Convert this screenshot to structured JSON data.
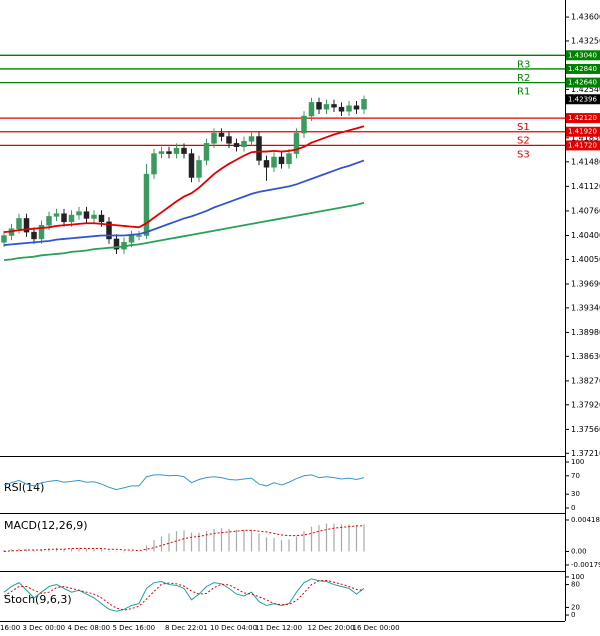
{
  "chart_data": [
    {
      "type": "candlestick",
      "categories": [
        "16:00",
        null,
        null,
        "3 Dec 00:00",
        null,
        null,
        null,
        null,
        null,
        "4 Dec 08:00",
        null,
        null,
        null,
        null,
        null,
        "5 Dec 16:00",
        null,
        null,
        null,
        null,
        null,
        null,
        "8 Dec 22:01",
        null,
        null,
        null,
        null,
        null,
        "10 Dec 04:00",
        null,
        null,
        null,
        null,
        null,
        "11 Dec 12:00",
        null,
        null,
        null,
        null,
        null,
        null,
        "12 Dec 20:00",
        null,
        null,
        null,
        null,
        null,
        "16 Dec 00:00",
        null
      ],
      "open": [
        1.403,
        1.404,
        1.405,
        1.4065,
        1.4045,
        1.4035,
        1.4055,
        1.4068,
        1.4072,
        1.406,
        1.407,
        1.4075,
        1.4065,
        1.407,
        1.406,
        1.4035,
        1.402,
        1.403,
        1.404,
        1.404,
        1.413,
        1.416,
        1.4163,
        1.416,
        1.4168,
        1.416,
        1.4125,
        1.415,
        1.4175,
        1.419,
        1.4185,
        1.4175,
        1.417,
        1.4178,
        1.4185,
        1.415,
        1.414,
        1.4155,
        1.4145,
        1.416,
        1.419,
        1.4215,
        1.4235,
        1.4225,
        1.4232,
        1.4228,
        1.4222,
        1.423,
        1.4225
      ],
      "high": [
        1.4047,
        1.4057,
        1.4072,
        1.4072,
        1.4052,
        1.4062,
        1.4075,
        1.4079,
        1.4079,
        1.4077,
        1.4082,
        1.4082,
        1.4077,
        1.4077,
        1.4067,
        1.4042,
        1.4037,
        1.4047,
        1.4047,
        1.4145,
        1.4167,
        1.417,
        1.417,
        1.4175,
        1.4175,
        1.4167,
        1.4157,
        1.4182,
        1.4197,
        1.4197,
        1.4192,
        1.4182,
        1.4185,
        1.4192,
        1.4192,
        1.4157,
        1.4162,
        1.4162,
        1.4167,
        1.4197,
        1.4222,
        1.4242,
        1.4242,
        1.4239,
        1.4239,
        1.4235,
        1.4237,
        1.4237,
        1.4245
      ],
      "low": [
        1.4023,
        1.4033,
        1.4043,
        1.4038,
        1.4028,
        1.4028,
        1.4048,
        1.4061,
        1.4053,
        1.4053,
        1.4063,
        1.4058,
        1.4058,
        1.4053,
        1.4028,
        1.4013,
        1.4013,
        1.4023,
        1.4033,
        1.4035,
        1.4123,
        1.4153,
        1.4153,
        1.4153,
        1.4153,
        1.4118,
        1.4118,
        1.4143,
        1.4168,
        1.4178,
        1.4168,
        1.4163,
        1.4163,
        1.4171,
        1.4143,
        1.412,
        1.4133,
        1.4138,
        1.4138,
        1.4153,
        1.4183,
        1.4208,
        1.4218,
        1.4218,
        1.4221,
        1.4215,
        1.4215,
        1.4218,
        1.4218
      ],
      "close": [
        1.404,
        1.405,
        1.4065,
        1.4045,
        1.4035,
        1.4055,
        1.4068,
        1.4072,
        1.406,
        1.407,
        1.4075,
        1.4065,
        1.407,
        1.406,
        1.4035,
        1.402,
        1.403,
        1.404,
        1.404,
        1.413,
        1.416,
        1.4163,
        1.416,
        1.4168,
        1.416,
        1.4125,
        1.415,
        1.4175,
        1.419,
        1.4185,
        1.4175,
        1.417,
        1.4178,
        1.4185,
        1.415,
        1.414,
        1.4155,
        1.4145,
        1.416,
        1.419,
        1.4215,
        1.4235,
        1.4225,
        1.4232,
        1.4228,
        1.4222,
        1.423,
        1.4225,
        1.42396
      ],
      "up_color": "#3c9a5f",
      "down_color": "#222222",
      "series": [
        {
          "color": "#e00000",
          "values": [
            1.4045,
            1.4046,
            1.4048,
            1.4049,
            1.405,
            1.4051,
            1.4052,
            1.4054,
            1.4055,
            1.4056,
            1.4057,
            1.4058,
            1.4058,
            1.4057,
            1.4056,
            1.4055,
            1.4054,
            1.4053,
            1.4052,
            1.4058,
            1.4066,
            1.4074,
            1.4082,
            1.409,
            1.4097,
            1.4102,
            1.411,
            1.412,
            1.413,
            1.4138,
            1.4145,
            1.4151,
            1.4157,
            1.4162,
            1.4163,
            1.4163,
            1.4164,
            1.4163,
            1.4164,
            1.4166,
            1.417,
            1.4176,
            1.418,
            1.4184,
            1.4188,
            1.4191,
            1.4194,
            1.4197,
            1.42
          ]
        },
        {
          "color": "#3355cc",
          "values": [
            1.4026,
            1.4027,
            1.4028,
            1.4029,
            1.403,
            1.4031,
            1.4032,
            1.4034,
            1.4035,
            1.4036,
            1.4037,
            1.4038,
            1.4039,
            1.404,
            1.404,
            1.404,
            1.404,
            1.4041,
            1.4042,
            1.4045,
            1.4049,
            1.4053,
            1.4057,
            1.4061,
            1.4065,
            1.4068,
            1.4072,
            1.4076,
            1.4081,
            1.4085,
            1.4089,
            1.4093,
            1.4097,
            1.4101,
            1.4104,
            1.4106,
            1.4108,
            1.411,
            1.4112,
            1.4115,
            1.4119,
            1.4123,
            1.4127,
            1.4131,
            1.4135,
            1.4139,
            1.4142,
            1.4146,
            1.415
          ]
        },
        {
          "color": "#2aa05a",
          "values": [
            1.4004,
            1.4005,
            1.4007,
            1.4008,
            1.4009,
            1.4011,
            1.4012,
            1.4013,
            1.4014,
            1.4016,
            1.4017,
            1.4018,
            1.402,
            1.4021,
            1.4022,
            1.4023,
            1.4024,
            1.4026,
            1.4027,
            1.4029,
            1.4031,
            1.4033,
            1.4035,
            1.4037,
            1.4039,
            1.4041,
            1.4043,
            1.4045,
            1.4047,
            1.4049,
            1.4051,
            1.4053,
            1.4055,
            1.4057,
            1.4059,
            1.4061,
            1.4063,
            1.4065,
            1.4067,
            1.4069,
            1.4071,
            1.4073,
            1.4075,
            1.4077,
            1.4079,
            1.4081,
            1.4083,
            1.4085,
            1.4088
          ]
        }
      ],
      "levels": [
        {
          "name": "R3",
          "value": 1.4304,
          "label": "1.43040",
          "color": "#008000"
        },
        {
          "name": "R2",
          "value": 1.4284,
          "label": "1.42840",
          "color": "#008000"
        },
        {
          "name": "R1",
          "value": 1.4264,
          "label": "1.42640",
          "color": "#008000"
        },
        {
          "name": "S1",
          "value": 1.4212,
          "label": "1.42120",
          "color": "#e00000"
        },
        {
          "name": "S2",
          "value": 1.4192,
          "label": "1.41920",
          "color": "#e00000"
        },
        {
          "name": "S3",
          "value": 1.4172,
          "label": "1.41720",
          "color": "#e00000"
        }
      ],
      "current": {
        "value": 1.42396,
        "label": "1.42396"
      },
      "ylim": [
        1.3717,
        1.4385
      ],
      "yticks": [
        {
          "value": 1.436,
          "label": "1.43600"
        },
        {
          "value": 1.4325,
          "label": "1.43250"
        },
        {
          "value": 1.4254,
          "label": "1.42540"
        },
        {
          "value": 1.4183,
          "label": "1.41830"
        },
        {
          "value": 1.4148,
          "label": "1.41480"
        },
        {
          "value": 1.4112,
          "label": "1.41120"
        },
        {
          "value": 1.4076,
          "label": "1.40760"
        },
        {
          "value": 1.404,
          "label": "1.40400"
        },
        {
          "value": 1.4005,
          "label": "1.40050"
        },
        {
          "value": 1.3969,
          "label": "1.39690"
        },
        {
          "value": 1.3934,
          "label": "1.39340"
        },
        {
          "value": 1.3898,
          "label": "1.38980"
        },
        {
          "value": 1.3863,
          "label": "1.38630"
        },
        {
          "value": 1.3827,
          "label": "1.38270"
        },
        {
          "value": 1.3792,
          "label": "1.37920"
        },
        {
          "value": 1.3756,
          "label": "1.37560"
        },
        {
          "value": 1.3721,
          "label": "1.37210"
        }
      ]
    },
    {
      "type": "line",
      "title": "RSI(14)",
      "series": [
        {
          "color": "#3399cc",
          "values": [
            50,
            55,
            60,
            52,
            48,
            55,
            58,
            60,
            56,
            58,
            60,
            56,
            57,
            52,
            45,
            40,
            44,
            48,
            48,
            68,
            72,
            72,
            70,
            71,
            68,
            55,
            62,
            66,
            68,
            66,
            62,
            61,
            63,
            65,
            52,
            48,
            55,
            50,
            56,
            64,
            70,
            72,
            66,
            68,
            66,
            63,
            65,
            62,
            66
          ]
        }
      ],
      "ylim": [
        -8.7,
        108.7
      ],
      "yticks": [
        100,
        70,
        30,
        0
      ]
    },
    {
      "type": "bar",
      "title": "MACD(12,26,9)",
      "color": "#aaaaaa",
      "values": [
        0.0002,
        0.0003,
        0.0004,
        0.0003,
        0.0002,
        0.0003,
        0.0004,
        0.0005,
        0.0004,
        0.0004,
        0.0005,
        0.0004,
        0.0004,
        0.0003,
        0.0001,
        -0.0001,
        -0.0001,
        0.0,
        0.0,
        0.0008,
        0.0015,
        0.002,
        0.0024,
        0.0027,
        0.0028,
        0.0025,
        0.0025,
        0.0027,
        0.003,
        0.0031,
        0.003,
        0.0029,
        0.0029,
        0.0029,
        0.0024,
        0.0019,
        0.0018,
        0.0015,
        0.0016,
        0.002,
        0.0027,
        0.0033,
        0.0035,
        0.0037,
        0.0037,
        0.0036,
        0.0036,
        0.0035,
        0.0036
      ],
      "series": [
        {
          "color": "#e00000",
          "dashed": true,
          "values": [
            0.0,
            0.0001,
            0.0001,
            0.0002,
            0.0002,
            0.0002,
            0.0003,
            0.0003,
            0.0003,
            0.0004,
            0.0004,
            0.0004,
            0.0004,
            0.0004,
            0.0003,
            0.0003,
            0.0002,
            0.0002,
            0.0001,
            0.0003,
            0.0005,
            0.0008,
            0.0011,
            0.0014,
            0.0017,
            0.0019,
            0.002,
            0.0022,
            0.0024,
            0.0025,
            0.0026,
            0.0027,
            0.0028,
            0.0028,
            0.0027,
            0.0026,
            0.0024,
            0.0022,
            0.0021,
            0.0021,
            0.0022,
            0.0024,
            0.0027,
            0.0029,
            0.0031,
            0.0032,
            0.0033,
            0.0034,
            0.0034
          ]
        }
      ],
      "ylim": [
        -0.00246,
        0.00498
      ],
      "yticks": [
        0.004181,
        {
          "value": 0,
          "label": "0.00"
        },
        -0.001794
      ]
    },
    {
      "type": "line",
      "title": "Stoch(9,6,3)",
      "series": [
        {
          "color": "#20a0a0",
          "values": [
            60,
            75,
            85,
            65,
            45,
            60,
            75,
            80,
            70,
            60,
            65,
            55,
            45,
            30,
            15,
            10,
            15,
            25,
            30,
            70,
            85,
            88,
            80,
            78,
            70,
            40,
            55,
            75,
            85,
            82,
            70,
            55,
            50,
            60,
            35,
            25,
            30,
            25,
            30,
            60,
            85,
            95,
            90,
            88,
            80,
            75,
            70,
            55,
            70
          ]
        },
        {
          "color": "#e00000",
          "dashed": true,
          "values": [
            50,
            62,
            75,
            75,
            65,
            57,
            60,
            72,
            75,
            70,
            65,
            60,
            55,
            45,
            30,
            18,
            13,
            17,
            23,
            42,
            62,
            81,
            84,
            82,
            76,
            63,
            55,
            57,
            72,
            81,
            79,
            69,
            58,
            55,
            48,
            40,
            30,
            27,
            28,
            38,
            58,
            80,
            90,
            91,
            86,
            81,
            75,
            67,
            65
          ]
        }
      ],
      "ylim": [
        -13,
        113
      ],
      "yticks": [
        100,
        80,
        20,
        0
      ]
    }
  ]
}
